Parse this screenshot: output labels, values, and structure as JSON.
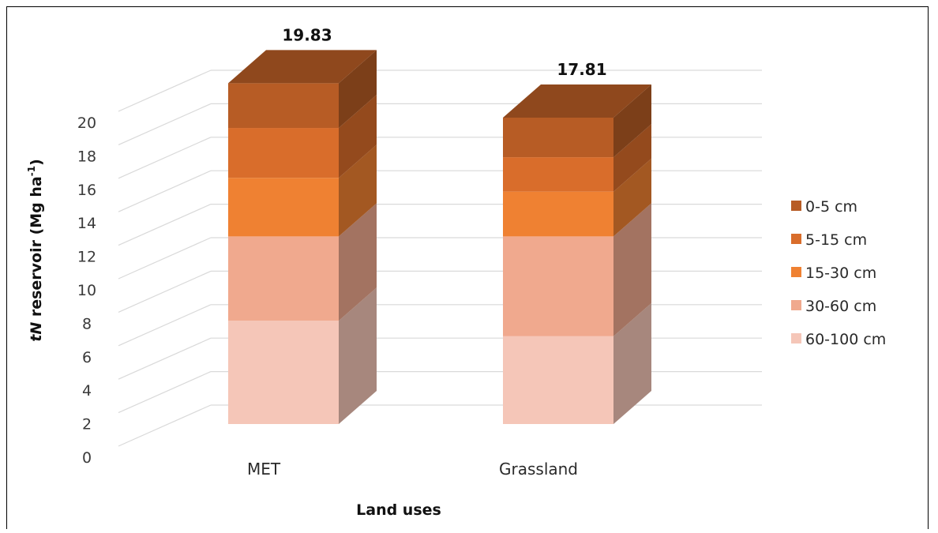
{
  "chart_data": {
    "type": "bar",
    "stacked": true,
    "three_d": true,
    "categories": [
      "MET",
      "Grassland"
    ],
    "totals": [
      "19.83",
      "17.81"
    ],
    "series": [
      {
        "name": "60-100 cm",
        "values": [
          6.0,
          5.1
        ],
        "color": "#f5c6b8"
      },
      {
        "name": "30-60 cm",
        "values": [
          4.9,
          5.8
        ],
        "color": "#f0a98e"
      },
      {
        "name": "15-30 cm",
        "values": [
          3.4,
          2.6
        ],
        "color": "#ef8132"
      },
      {
        "name": "5-15 cm",
        "values": [
          2.9,
          2.0
        ],
        "color": "#d96d2b"
      },
      {
        "name": "0-5 cm",
        "values": [
          2.6,
          2.3
        ],
        "color": "#b75c25"
      }
    ],
    "xlabel": "Land uses",
    "ylabel_prefix": "tN",
    "ylabel_main": " reservoir (Mg ha",
    "ylabel_sup": "-1",
    "ylabel_close": ")",
    "yticks": [
      "0",
      "2",
      "4",
      "6",
      "8",
      "10",
      "12",
      "14",
      "16",
      "18",
      "20"
    ],
    "ylim": [
      0,
      20
    ],
    "grid": true,
    "legend_position": "right"
  }
}
